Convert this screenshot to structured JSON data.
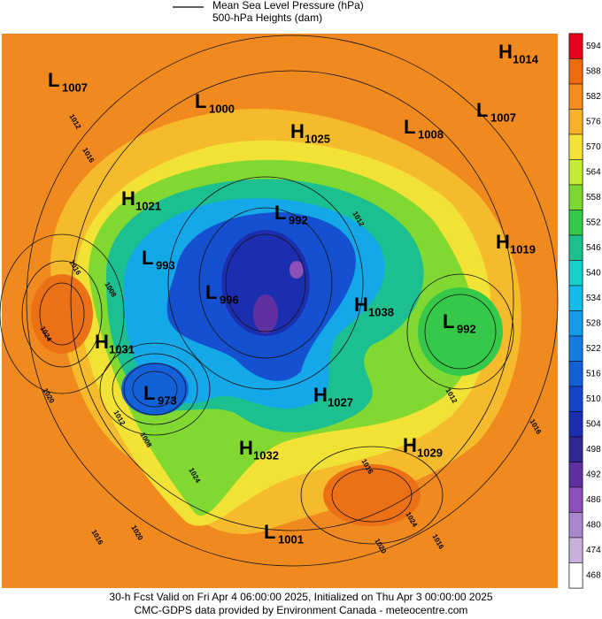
{
  "legend": {
    "items": [
      "Mean Sea Level Pressure (hPa)",
      "500-hPa Heights (dam)"
    ]
  },
  "map": {
    "centers": [
      {
        "letter": "L",
        "value": 1007
      },
      {
        "letter": "L",
        "value": 1000
      },
      {
        "letter": "H",
        "value": 1025
      },
      {
        "letter": "L",
        "value": 1008
      },
      {
        "letter": "L",
        "value": 1007
      },
      {
        "letter": "H",
        "value": 1014
      },
      {
        "letter": "H",
        "value": 1021
      },
      {
        "letter": "L",
        "value": 992
      },
      {
        "letter": "L",
        "value": 993
      },
      {
        "letter": "H",
        "value": 1019
      },
      {
        "letter": "L",
        "value": 996
      },
      {
        "letter": "H",
        "value": 1038
      },
      {
        "letter": "L",
        "value": 992
      },
      {
        "letter": "H",
        "value": 1031
      },
      {
        "letter": "L",
        "value": 973
      },
      {
        "letter": "H",
        "value": 1027
      },
      {
        "letter": "H",
        "value": 1029
      },
      {
        "letter": "H",
        "value": 1032
      },
      {
        "letter": "L",
        "value": 1001
      }
    ],
    "contour_labels": [
      1012,
      1016,
      1016,
      1008,
      1024,
      1020,
      1012,
      1008,
      1016,
      1024,
      1020,
      1016,
      1012,
      1016,
      1024,
      1020,
      1016,
      1012
    ]
  },
  "colorbar": {
    "levels": [
      {
        "value": 594,
        "color": "#e8001c"
      },
      {
        "value": 588,
        "color": "#f06a10"
      },
      {
        "value": 582,
        "color": "#f58c1c"
      },
      {
        "value": 576,
        "color": "#f8b22a"
      },
      {
        "value": 570,
        "color": "#f4e234"
      },
      {
        "value": 564,
        "color": "#c4ec34"
      },
      {
        "value": 558,
        "color": "#7cd830"
      },
      {
        "value": 552,
        "color": "#36c848"
      },
      {
        "value": 546,
        "color": "#1cc08c"
      },
      {
        "value": 540,
        "color": "#14d0c8"
      },
      {
        "value": 534,
        "color": "#12bce8"
      },
      {
        "value": 528,
        "color": "#149ce8"
      },
      {
        "value": 522,
        "color": "#147ce0"
      },
      {
        "value": 516,
        "color": "#1260d8"
      },
      {
        "value": 510,
        "color": "#1444c8"
      },
      {
        "value": 504,
        "color": "#1c2eb0"
      },
      {
        "value": 498,
        "color": "#302890"
      },
      {
        "value": 492,
        "color": "#6030a0"
      },
      {
        "value": 486,
        "color": "#8c50b8"
      },
      {
        "value": 480,
        "color": "#a888cc"
      },
      {
        "value": 474,
        "color": "#c8b0dc"
      },
      {
        "value": 468,
        "color": "#ffffff"
      }
    ]
  },
  "footer": {
    "lines": [
      "30-h Fcst Valid on Fri Apr  4 06:00:00 2025, Initialized on Thu Apr  3 00:00:00 2025",
      "CMC-GDPS data provided by Environment Canada - meteocentre.com"
    ]
  }
}
